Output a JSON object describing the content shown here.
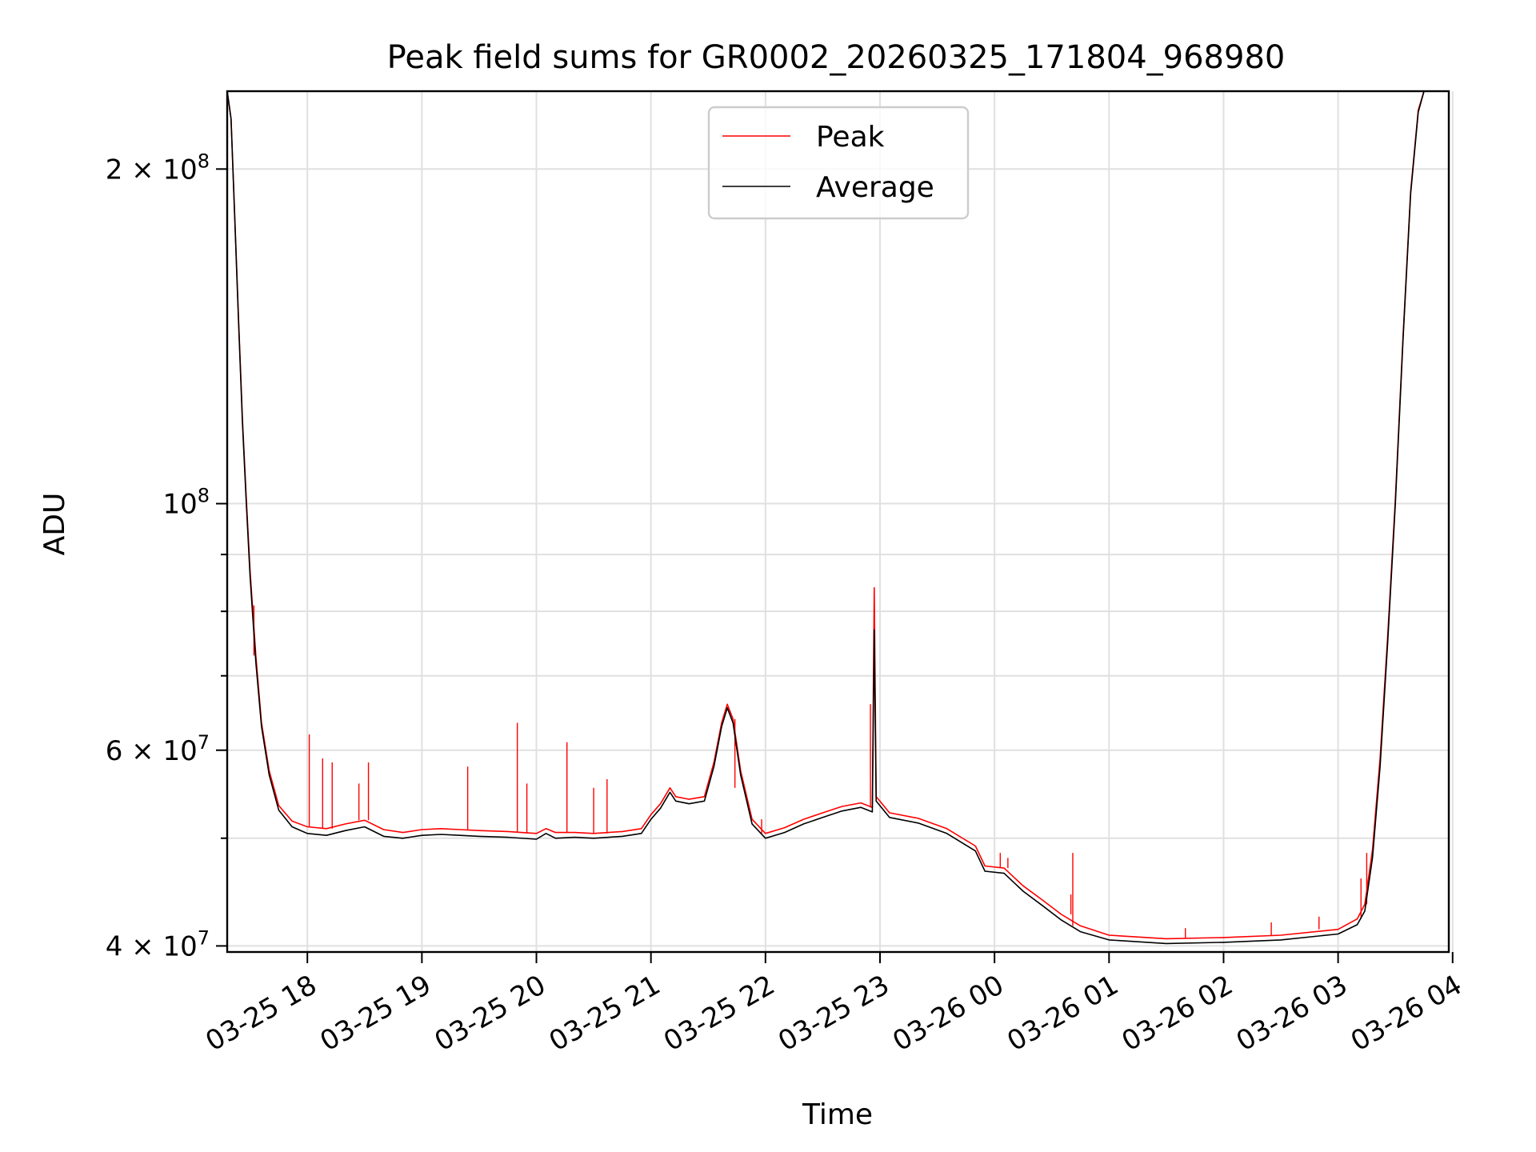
{
  "chart_data": {
    "type": "line",
    "title": "Peak field sums for GR0002_20260325_171804_968980",
    "xlabel": "Time",
    "ylabel": "ADU",
    "y_scale": "log",
    "grid": true,
    "legend_position": "upper center",
    "xlim": [
      "2026-03-25 17:18",
      "2026-03-26 03:58"
    ],
    "ylim": [
      39500000,
      235000000
    ],
    "x_ticks": [
      {
        "t": "2026-03-25 18:00",
        "label": "03-25 18"
      },
      {
        "t": "2026-03-25 19:00",
        "label": "03-25 19"
      },
      {
        "t": "2026-03-25 20:00",
        "label": "03-25 20"
      },
      {
        "t": "2026-03-25 21:00",
        "label": "03-25 21"
      },
      {
        "t": "2026-03-25 22:00",
        "label": "03-25 22"
      },
      {
        "t": "2026-03-25 23:00",
        "label": "03-25 23"
      },
      {
        "t": "2026-03-26 00:00",
        "label": "03-26 00"
      },
      {
        "t": "2026-03-26 01:00",
        "label": "03-26 01"
      },
      {
        "t": "2026-03-26 02:00",
        "label": "03-26 02"
      },
      {
        "t": "2026-03-26 03:00",
        "label": "03-26 03"
      },
      {
        "t": "2026-03-26 04:00",
        "label": "03-26 04"
      }
    ],
    "y_major_ticks": [
      {
        "v": 40000000,
        "base": "4 × 10",
        "exp": "7"
      },
      {
        "v": 60000000,
        "base": "6 × 10",
        "exp": "7"
      },
      {
        "v": 100000000,
        "base": "10",
        "exp": "8"
      },
      {
        "v": 200000000,
        "base": "2 × 10",
        "exp": "8"
      }
    ],
    "y_minor_ticks": [
      50000000,
      70000000,
      80000000,
      90000000
    ],
    "series": [
      {
        "name": "Average",
        "color": "#000000",
        "points": [
          [
            "2026-03-25 17:18",
            235000000
          ],
          [
            "2026-03-25 17:20",
            222000000
          ],
          [
            "2026-03-25 17:22",
            180000000
          ],
          [
            "2026-03-25 17:24",
            145000000
          ],
          [
            "2026-03-25 17:26",
            118000000
          ],
          [
            "2026-03-25 17:28",
            100000000
          ],
          [
            "2026-03-25 17:30",
            86000000
          ],
          [
            "2026-03-25 17:33",
            72000000
          ],
          [
            "2026-03-25 17:36",
            63000000
          ],
          [
            "2026-03-25 17:40",
            57000000
          ],
          [
            "2026-03-25 17:45",
            53000000
          ],
          [
            "2026-03-25 17:52",
            51200000
          ],
          [
            "2026-03-25 18:00",
            50500000
          ],
          [
            "2026-03-25 18:10",
            50300000
          ],
          [
            "2026-03-25 18:20",
            50800000
          ],
          [
            "2026-03-25 18:30",
            51200000
          ],
          [
            "2026-03-25 18:40",
            50200000
          ],
          [
            "2026-03-25 18:50",
            50000000
          ],
          [
            "2026-03-25 19:00",
            50300000
          ],
          [
            "2026-03-25 19:10",
            50400000
          ],
          [
            "2026-03-25 19:20",
            50300000
          ],
          [
            "2026-03-25 19:30",
            50200000
          ],
          [
            "2026-03-25 19:45",
            50100000
          ],
          [
            "2026-03-25 20:00",
            49900000
          ],
          [
            "2026-03-25 20:05",
            50500000
          ],
          [
            "2026-03-25 20:10",
            50000000
          ],
          [
            "2026-03-25 20:20",
            50100000
          ],
          [
            "2026-03-25 20:30",
            50000000
          ],
          [
            "2026-03-25 20:45",
            50200000
          ],
          [
            "2026-03-25 20:55",
            50500000
          ],
          [
            "2026-03-25 21:00",
            52000000
          ],
          [
            "2026-03-25 21:05",
            53200000
          ],
          [
            "2026-03-25 21:10",
            55000000
          ],
          [
            "2026-03-25 21:13",
            54000000
          ],
          [
            "2026-03-25 21:20",
            53700000
          ],
          [
            "2026-03-25 21:28",
            54000000
          ],
          [
            "2026-03-25 21:33",
            58000000
          ],
          [
            "2026-03-25 21:37",
            63000000
          ],
          [
            "2026-03-25 21:40",
            65500000
          ],
          [
            "2026-03-25 21:43",
            63500000
          ],
          [
            "2026-03-25 21:47",
            57000000
          ],
          [
            "2026-03-25 21:53",
            51500000
          ],
          [
            "2026-03-25 22:00",
            50000000
          ],
          [
            "2026-03-25 22:10",
            50600000
          ],
          [
            "2026-03-25 22:20",
            51500000
          ],
          [
            "2026-03-25 22:30",
            52200000
          ],
          [
            "2026-03-25 22:40",
            52900000
          ],
          [
            "2026-03-25 22:50",
            53300000
          ],
          [
            "2026-03-25 22:56",
            52800000
          ],
          [
            "2026-03-25 22:57",
            77000000
          ],
          [
            "2026-03-25 22:58",
            54000000
          ],
          [
            "2026-03-25 23:05",
            52200000
          ],
          [
            "2026-03-25 23:20",
            51600000
          ],
          [
            "2026-03-25 23:35",
            50500000
          ],
          [
            "2026-03-25 23:50",
            48700000
          ],
          [
            "2026-03-25 23:55",
            46700000
          ],
          [
            "2026-03-26 00:05",
            46500000
          ],
          [
            "2026-03-26 00:15",
            44800000
          ],
          [
            "2026-03-26 00:25",
            43500000
          ],
          [
            "2026-03-26 00:35",
            42200000
          ],
          [
            "2026-03-26 00:45",
            41200000
          ],
          [
            "2026-03-26 01:00",
            40500000
          ],
          [
            "2026-03-26 01:30",
            40200000
          ],
          [
            "2026-03-26 02:00",
            40300000
          ],
          [
            "2026-03-26 02:30",
            40500000
          ],
          [
            "2026-03-26 03:00",
            41000000
          ],
          [
            "2026-03-26 03:10",
            41800000
          ],
          [
            "2026-03-26 03:14",
            43000000
          ],
          [
            "2026-03-26 03:18",
            48000000
          ],
          [
            "2026-03-26 03:22",
            58000000
          ],
          [
            "2026-03-26 03:26",
            75000000
          ],
          [
            "2026-03-26 03:30",
            100000000
          ],
          [
            "2026-03-26 03:34",
            140000000
          ],
          [
            "2026-03-26 03:38",
            190000000
          ],
          [
            "2026-03-26 03:42",
            225000000
          ],
          [
            "2026-03-26 03:45",
            235000000
          ]
        ]
      },
      {
        "name": "Peak",
        "color": "#ff0000",
        "points": [
          [
            "2026-03-25 17:18",
            235000000
          ],
          [
            "2026-03-25 17:20",
            222000000
          ],
          [
            "2026-03-25 17:22",
            181000000
          ],
          [
            "2026-03-25 17:24",
            146000000
          ],
          [
            "2026-03-25 17:26",
            119000000
          ],
          [
            "2026-03-25 17:28",
            101000000
          ],
          [
            "2026-03-25 17:30",
            87000000
          ],
          [
            "2026-03-25 17:33",
            73000000
          ],
          [
            "2026-03-25 17:36",
            63500000
          ],
          [
            "2026-03-25 17:40",
            57500000
          ],
          [
            "2026-03-25 17:45",
            53500000
          ],
          [
            "2026-03-25 17:52",
            51800000
          ],
          [
            "2026-03-25 18:00",
            51200000
          ],
          [
            "2026-03-25 18:10",
            51000000
          ],
          [
            "2026-03-25 18:20",
            51500000
          ],
          [
            "2026-03-25 18:30",
            51900000
          ],
          [
            "2026-03-25 18:40",
            50900000
          ],
          [
            "2026-03-25 18:50",
            50600000
          ],
          [
            "2026-03-25 19:00",
            50900000
          ],
          [
            "2026-03-25 19:10",
            51000000
          ],
          [
            "2026-03-25 19:20",
            50900000
          ],
          [
            "2026-03-25 19:30",
            50800000
          ],
          [
            "2026-03-25 19:45",
            50700000
          ],
          [
            "2026-03-25 20:00",
            50500000
          ],
          [
            "2026-03-25 20:05",
            51000000
          ],
          [
            "2026-03-25 20:10",
            50600000
          ],
          [
            "2026-03-25 20:20",
            50600000
          ],
          [
            "2026-03-25 20:30",
            50500000
          ],
          [
            "2026-03-25 20:45",
            50700000
          ],
          [
            "2026-03-25 20:55",
            51000000
          ],
          [
            "2026-03-25 21:00",
            52500000
          ],
          [
            "2026-03-25 21:05",
            53700000
          ],
          [
            "2026-03-25 21:10",
            55500000
          ],
          [
            "2026-03-25 21:13",
            54500000
          ],
          [
            "2026-03-25 21:20",
            54200000
          ],
          [
            "2026-03-25 21:28",
            54500000
          ],
          [
            "2026-03-25 21:33",
            58500000
          ],
          [
            "2026-03-25 21:37",
            63500000
          ],
          [
            "2026-03-25 21:40",
            66000000
          ],
          [
            "2026-03-25 21:43",
            64000000
          ],
          [
            "2026-03-25 21:47",
            57500000
          ],
          [
            "2026-03-25 21:53",
            52000000
          ],
          [
            "2026-03-25 22:00",
            50500000
          ],
          [
            "2026-03-25 22:10",
            51100000
          ],
          [
            "2026-03-25 22:20",
            52000000
          ],
          [
            "2026-03-25 22:30",
            52700000
          ],
          [
            "2026-03-25 22:40",
            53400000
          ],
          [
            "2026-03-25 22:50",
            53800000
          ],
          [
            "2026-03-25 22:56",
            53300000
          ],
          [
            "2026-03-25 22:57",
            84000000
          ],
          [
            "2026-03-25 22:58",
            54500000
          ],
          [
            "2026-03-25 23:05",
            52700000
          ],
          [
            "2026-03-25 23:20",
            52100000
          ],
          [
            "2026-03-25 23:35",
            51000000
          ],
          [
            "2026-03-25 23:50",
            49200000
          ],
          [
            "2026-03-25 23:55",
            47200000
          ],
          [
            "2026-03-26 00:05",
            47000000
          ],
          [
            "2026-03-26 00:15",
            45300000
          ],
          [
            "2026-03-26 00:25",
            44000000
          ],
          [
            "2026-03-26 00:35",
            42700000
          ],
          [
            "2026-03-26 00:45",
            41700000
          ],
          [
            "2026-03-26 01:00",
            40900000
          ],
          [
            "2026-03-26 01:30",
            40600000
          ],
          [
            "2026-03-26 02:00",
            40700000
          ],
          [
            "2026-03-26 02:30",
            40900000
          ],
          [
            "2026-03-26 03:00",
            41400000
          ],
          [
            "2026-03-26 03:10",
            42300000
          ],
          [
            "2026-03-26 03:14",
            43600000
          ],
          [
            "2026-03-26 03:18",
            48800000
          ],
          [
            "2026-03-26 03:22",
            59000000
          ],
          [
            "2026-03-26 03:26",
            76000000
          ],
          [
            "2026-03-26 03:30",
            101000000
          ],
          [
            "2026-03-26 03:34",
            141000000
          ],
          [
            "2026-03-26 03:38",
            191000000
          ],
          [
            "2026-03-26 03:42",
            226000000
          ],
          [
            "2026-03-26 03:45",
            235000000
          ]
        ],
        "spikes": [
          [
            "2026-03-25 17:32",
            81000000
          ],
          [
            "2026-03-25 18:01",
            62000000
          ],
          [
            "2026-03-25 18:08",
            59000000
          ],
          [
            "2026-03-25 18:13",
            58500000
          ],
          [
            "2026-03-25 18:27",
            56000000
          ],
          [
            "2026-03-25 18:32",
            58500000
          ],
          [
            "2026-03-25 19:24",
            58000000
          ],
          [
            "2026-03-25 19:50",
            63500000
          ],
          [
            "2026-03-25 19:55",
            56000000
          ],
          [
            "2026-03-25 20:16",
            61000000
          ],
          [
            "2026-03-25 20:30",
            55500000
          ],
          [
            "2026-03-25 20:37",
            56500000
          ],
          [
            "2026-03-25 21:44",
            55500000
          ],
          [
            "2026-03-25 21:58",
            52000000
          ],
          [
            "2026-03-25 22:55",
            66000000
          ],
          [
            "2026-03-26 00:03",
            48500000
          ],
          [
            "2026-03-26 00:07",
            48000000
          ],
          [
            "2026-03-26 00:40",
            44500000
          ],
          [
            "2026-03-26 00:41",
            48500000
          ],
          [
            "2026-03-26 01:40",
            41500000
          ],
          [
            "2026-03-26 02:25",
            42000000
          ],
          [
            "2026-03-26 02:50",
            42500000
          ],
          [
            "2026-03-26 03:12",
            46000000
          ],
          [
            "2026-03-26 03:15",
            48500000
          ]
        ]
      }
    ]
  }
}
